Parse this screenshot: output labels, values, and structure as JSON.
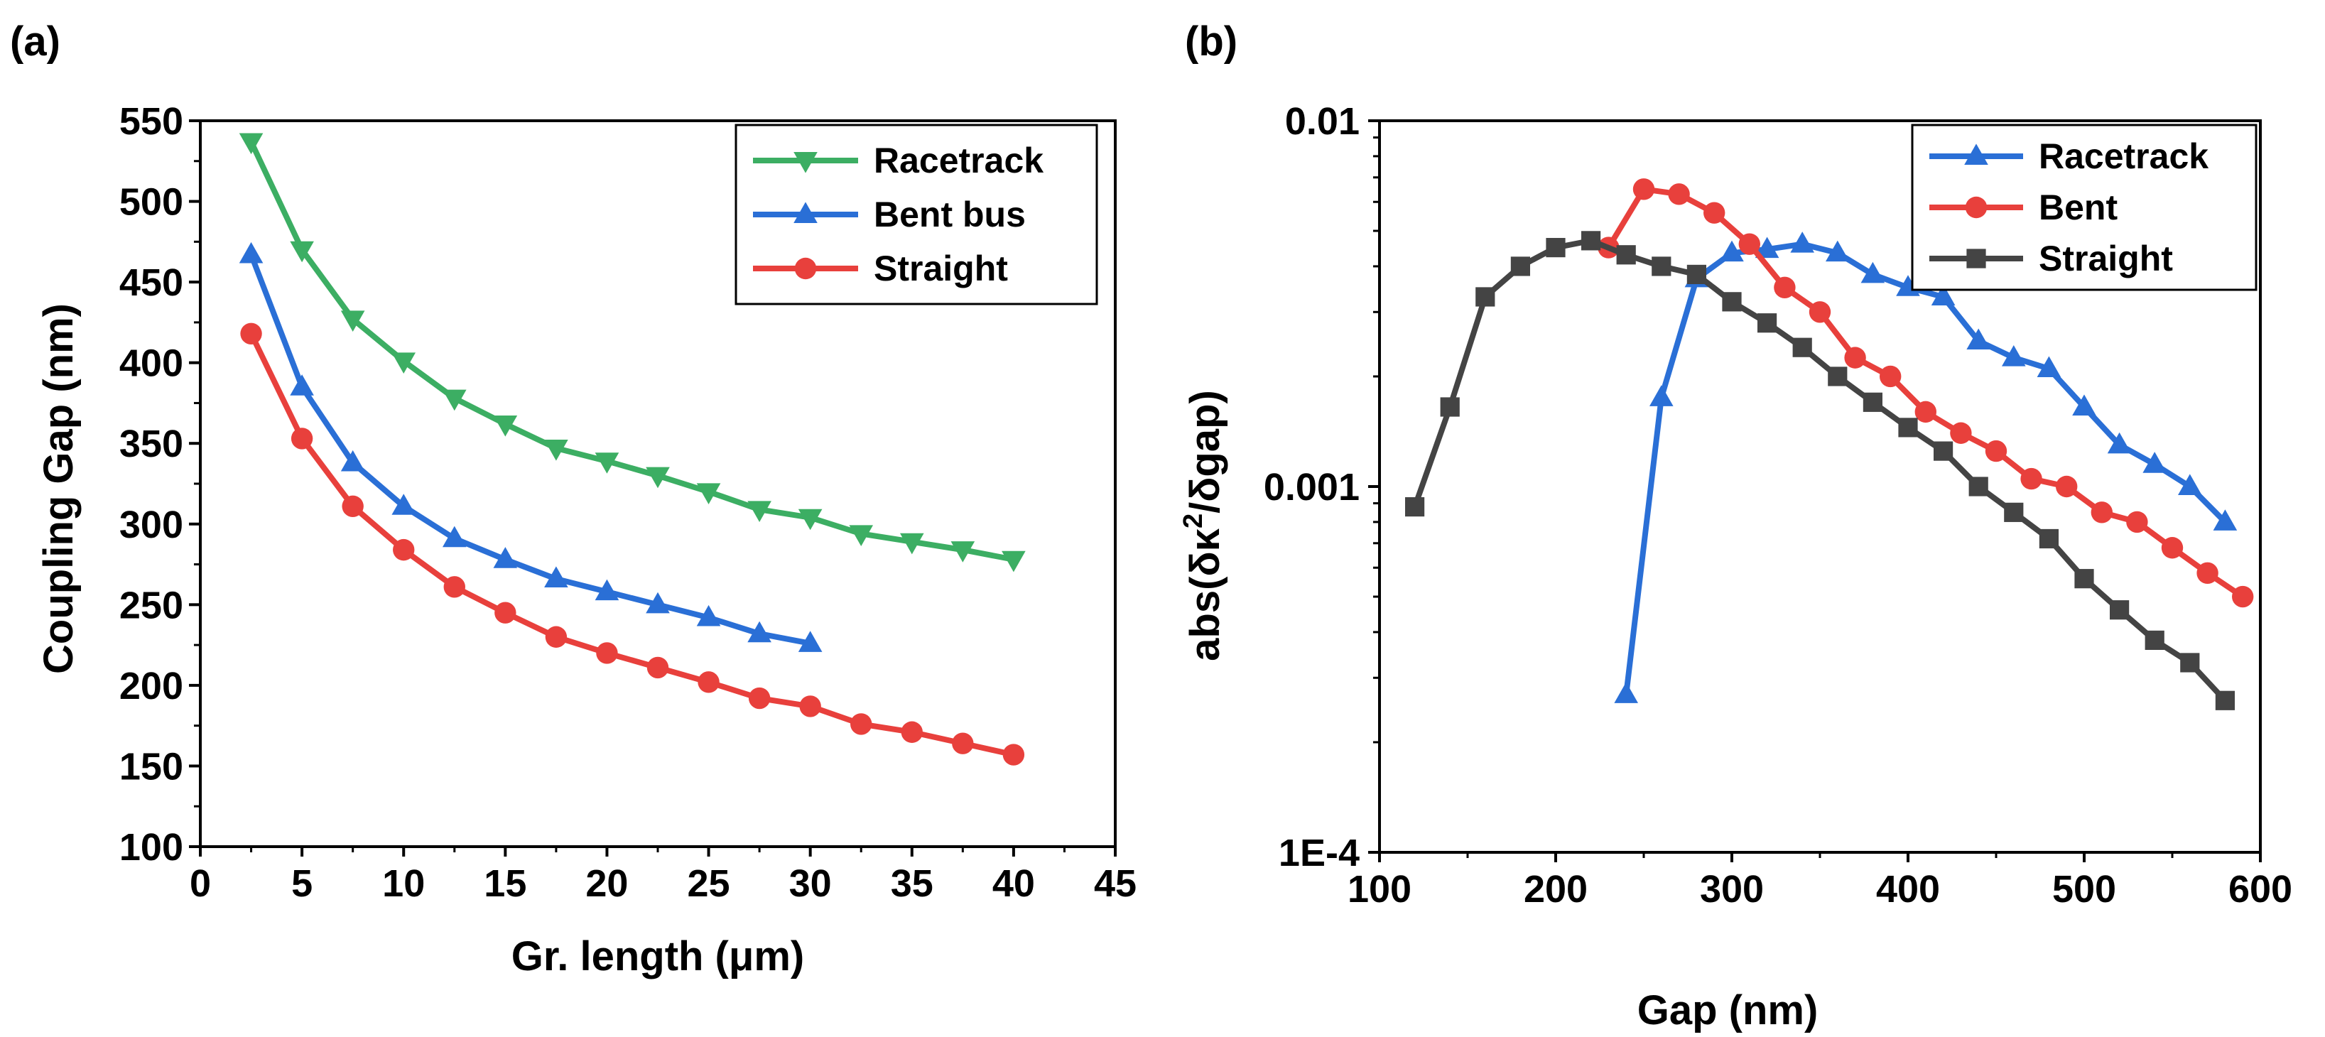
{
  "chart_data": [
    {
      "type": "line",
      "panel_label": "(a)",
      "title": "",
      "xlabel": "Gr. length (μm)",
      "ylabel": "Coupling Gap (nm)",
      "xlim": [
        0,
        45
      ],
      "ylim": [
        100,
        550
      ],
      "xticks": [
        "0",
        "5",
        "10",
        "15",
        "20",
        "25",
        "30",
        "35",
        "40",
        "45"
      ],
      "yticks": [
        "100",
        "150",
        "200",
        "250",
        "300",
        "350",
        "400",
        "450",
        "500",
        "550"
      ],
      "legend_position": "top-right",
      "series": [
        {
          "name": "Racetrack",
          "color": "#3cae63",
          "marker": "triangle-down",
          "x": [
            2.5,
            5,
            7.5,
            10,
            12.5,
            15,
            17.5,
            20,
            22.5,
            25,
            27.5,
            30,
            32.5,
            35,
            37.5,
            40
          ],
          "y": [
            537,
            470,
            427,
            401,
            378,
            362,
            347,
            339,
            330,
            320,
            309,
            304,
            294,
            289,
            284,
            278
          ]
        },
        {
          "name": "Bent bus",
          "color": "#2a6fd6",
          "marker": "triangle-up",
          "x": [
            2.5,
            5,
            7.5,
            10,
            12.5,
            15,
            17.5,
            20,
            22.5,
            25,
            27.5,
            30
          ],
          "y": [
            467,
            385,
            338,
            311,
            291,
            278,
            266,
            258,
            250,
            242,
            232,
            226
          ]
        },
        {
          "name": "Straight",
          "color": "#e8403c",
          "marker": "circle",
          "x": [
            2.5,
            5,
            7.5,
            10,
            12.5,
            15,
            17.5,
            20,
            22.5,
            25,
            27.5,
            30,
            32.5,
            35,
            37.5,
            40
          ],
          "y": [
            418,
            353,
            311,
            284,
            261,
            245,
            230,
            220,
            211,
            202,
            192,
            187,
            176,
            171,
            164,
            157
          ]
        }
      ]
    },
    {
      "type": "line",
      "panel_label": "(b)",
      "title": "",
      "xlabel": "Gap (nm)",
      "ylabel": "abs(δκ²/δgap)",
      "ylabel_parts": [
        "abs(δκ",
        "2",
        "/δgap)"
      ],
      "yscale": "log",
      "xlim": [
        100,
        600
      ],
      "ylim": [
        0.0001,
        0.01
      ],
      "xticks": [
        "100",
        "200",
        "300",
        "400",
        "500",
        "600"
      ],
      "yticks": [
        "1E-4",
        "0.001",
        "0.01"
      ],
      "legend_position": "top-right",
      "series": [
        {
          "name": "Racetrack",
          "color": "#2a6fd6",
          "marker": "triangle-up",
          "x": [
            240,
            260,
            280,
            300,
            320,
            340,
            360,
            380,
            400,
            420,
            440,
            460,
            480,
            500,
            520,
            540,
            560,
            580
          ],
          "y": [
            0.00027,
            0.00175,
            0.0037,
            0.00435,
            0.00445,
            0.0046,
            0.00435,
            0.0038,
            0.0035,
            0.0033,
            0.0025,
            0.00225,
            0.0021,
            0.00165,
            0.0013,
            0.00115,
            0.001,
            0.0008
          ]
        },
        {
          "name": "Bent",
          "color": "#e8403c",
          "marker": "circle",
          "x": [
            230,
            250,
            270,
            290,
            310,
            330,
            350,
            370,
            390,
            410,
            430,
            450,
            470,
            490,
            510,
            530,
            550,
            570,
            590
          ],
          "y": [
            0.0045,
            0.0065,
            0.0063,
            0.0056,
            0.0046,
            0.0035,
            0.003,
            0.00225,
            0.002,
            0.0016,
            0.0014,
            0.00125,
            0.00105,
            0.001,
            0.00085,
            0.0008,
            0.00068,
            0.00058,
            0.0005
          ]
        },
        {
          "name": "Straight",
          "color": "#444444",
          "marker": "square",
          "x": [
            120,
            140,
            160,
            180,
            200,
            220,
            240,
            260,
            280,
            300,
            320,
            340,
            360,
            380,
            400,
            420,
            440,
            460,
            480,
            500,
            520,
            540,
            560,
            580
          ],
          "y": [
            0.00088,
            0.00165,
            0.0033,
            0.004,
            0.0045,
            0.0047,
            0.0043,
            0.004,
            0.0038,
            0.0032,
            0.0028,
            0.0024,
            0.002,
            0.0017,
            0.00145,
            0.00125,
            0.001,
            0.00085,
            0.00072,
            0.00056,
            0.00046,
            0.00038,
            0.00033,
            0.00026
          ]
        }
      ]
    }
  ]
}
